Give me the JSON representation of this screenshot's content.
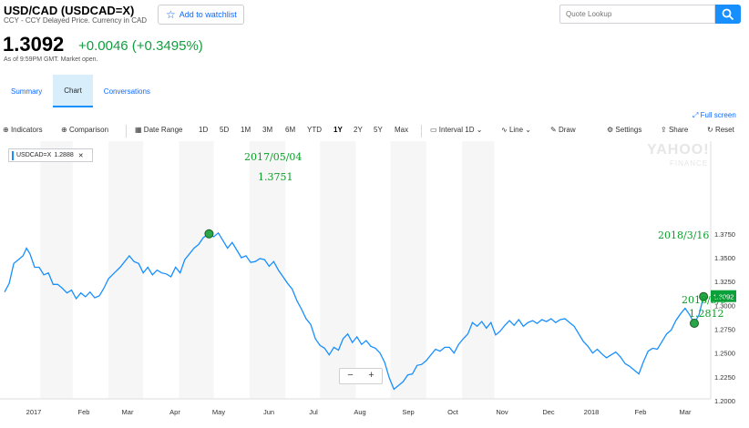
{
  "header": {
    "ticker": "USD/CAD (USDCAD=X)",
    "subline": "CCY - CCY Delayed Price. Currency in CAD",
    "watchlist_label": "Add to watchlist",
    "search_placeholder": "Quote Lookup"
  },
  "quote": {
    "price": "1.3092",
    "change": "+0.0046 (+0.3495%)",
    "as_of": "As of 9:59PM GMT. Market open."
  },
  "tabs": [
    {
      "label": "Summary"
    },
    {
      "label": "Chart",
      "active": true
    },
    {
      "label": "Conversations"
    }
  ],
  "fullscreen_label": "Full screen",
  "toolbar": {
    "indicators": "Indicators",
    "comparison": "Comparison",
    "date_range": "Date Range",
    "ranges": [
      "1D",
      "5D",
      "1M",
      "3M",
      "6M",
      "YTD",
      "1Y",
      "2Y",
      "5Y",
      "Max"
    ],
    "selected_range": "1Y",
    "interval": "Interval",
    "interval_value": "1D",
    "line": "Line",
    "draw": "Draw",
    "settings": "Settings",
    "share": "Share",
    "reset": "Reset"
  },
  "legend": {
    "label": "USDCAD=X",
    "value": "1.2888"
  },
  "watermark": {
    "line1": "YAHOO!",
    "line2": "FINANCE"
  },
  "zoom": {
    "minus": "−",
    "plus": "+"
  },
  "colors": {
    "line": "#188fff",
    "accent": "#0f69ff",
    "positive": "#109e3e",
    "annotation": "#0a9e29",
    "marker": "#2aa54a",
    "band": "#f6f6f6"
  },
  "chart_data": {
    "type": "line",
    "x_ticks": [
      "2017",
      "Feb",
      "Mar",
      "Apr",
      "May",
      "Jun",
      "Jul",
      "Aug",
      "Sep",
      "Oct",
      "Nov",
      "Dec",
      "2018",
      "Feb",
      "Mar"
    ],
    "y_ticks": [
      "1.3750",
      "1.3500",
      "1.3250",
      "1.3000",
      "1.2750",
      "1.2500",
      "1.2250",
      "1.2000"
    ],
    "ylim": [
      1.195,
      1.385
    ],
    "series": [
      {
        "values": [
          [
            0,
            1.314
          ],
          [
            4,
            1.323
          ],
          [
            8,
            1.344
          ],
          [
            12,
            1.348
          ],
          [
            16,
            1.352
          ],
          [
            19,
            1.36
          ],
          [
            22,
            1.354
          ],
          [
            26,
            1.34
          ],
          [
            30,
            1.34
          ],
          [
            34,
            1.332
          ],
          [
            38,
            1.334
          ],
          [
            42,
            1.322
          ],
          [
            46,
            1.322
          ],
          [
            50,
            1.318
          ],
          [
            54,
            1.313
          ],
          [
            58,
            1.316
          ],
          [
            62,
            1.307
          ],
          [
            66,
            1.313
          ],
          [
            70,
            1.309
          ],
          [
            74,
            1.314
          ],
          [
            78,
            1.308
          ],
          [
            82,
            1.31
          ],
          [
            86,
            1.318
          ],
          [
            90,
            1.328
          ],
          [
            95,
            1.334
          ],
          [
            100,
            1.34
          ],
          [
            104,
            1.346
          ],
          [
            108,
            1.352
          ],
          [
            112,
            1.346
          ],
          [
            116,
            1.344
          ],
          [
            120,
            1.334
          ],
          [
            124,
            1.34
          ],
          [
            128,
            1.332
          ],
          [
            132,
            1.337
          ],
          [
            136,
            1.334
          ],
          [
            140,
            1.333
          ],
          [
            144,
            1.33
          ],
          [
            148,
            1.34
          ],
          [
            152,
            1.334
          ],
          [
            156,
            1.348
          ],
          [
            160,
            1.354
          ],
          [
            164,
            1.36
          ],
          [
            168,
            1.364
          ],
          [
            172,
            1.371
          ],
          [
            177,
            1.3751
          ],
          [
            181,
            1.372
          ],
          [
            185,
            1.376
          ],
          [
            189,
            1.368
          ],
          [
            193,
            1.36
          ],
          [
            197,
            1.366
          ],
          [
            201,
            1.358
          ],
          [
            205,
            1.35
          ],
          [
            209,
            1.352
          ],
          [
            213,
            1.345
          ],
          [
            217,
            1.346
          ],
          [
            221,
            1.349
          ],
          [
            225,
            1.348
          ],
          [
            229,
            1.341
          ],
          [
            233,
            1.346
          ],
          [
            237,
            1.337
          ],
          [
            241,
            1.33
          ],
          [
            245,
            1.323
          ],
          [
            249,
            1.317
          ],
          [
            253,
            1.305
          ],
          [
            257,
            1.296
          ],
          [
            261,
            1.286
          ],
          [
            265,
            1.28
          ],
          [
            269,
            1.265
          ],
          [
            273,
            1.258
          ],
          [
            277,
            1.255
          ],
          [
            281,
            1.248
          ],
          [
            285,
            1.256
          ],
          [
            289,
            1.253
          ],
          [
            293,
            1.265
          ],
          [
            297,
            1.27
          ],
          [
            301,
            1.261
          ],
          [
            305,
            1.267
          ],
          [
            309,
            1.259
          ],
          [
            313,
            1.263
          ],
          [
            317,
            1.257
          ],
          [
            321,
            1.255
          ],
          [
            325,
            1.25
          ],
          [
            329,
            1.24
          ],
          [
            333,
            1.224
          ],
          [
            337,
            1.212
          ],
          [
            341,
            1.216
          ],
          [
            345,
            1.22
          ],
          [
            349,
            1.227
          ],
          [
            353,
            1.228
          ],
          [
            357,
            1.237
          ],
          [
            361,
            1.238
          ],
          [
            365,
            1.242
          ],
          [
            369,
            1.248
          ],
          [
            373,
            1.254
          ],
          [
            377,
            1.252
          ],
          [
            381,
            1.256
          ],
          [
            385,
            1.256
          ],
          [
            389,
            1.25
          ],
          [
            393,
            1.259
          ],
          [
            397,
            1.265
          ],
          [
            401,
            1.27
          ],
          [
            405,
            1.282
          ],
          [
            409,
            1.278
          ],
          [
            413,
            1.283
          ],
          [
            417,
            1.276
          ],
          [
            421,
            1.282
          ],
          [
            425,
            1.269
          ],
          [
            429,
            1.273
          ],
          [
            433,
            1.279
          ],
          [
            437,
            1.284
          ],
          [
            441,
            1.279
          ],
          [
            445,
            1.285
          ],
          [
            449,
            1.278
          ],
          [
            453,
            1.282
          ],
          [
            457,
            1.284
          ],
          [
            461,
            1.281
          ],
          [
            465,
            1.285
          ],
          [
            469,
            1.283
          ],
          [
            473,
            1.286
          ],
          [
            477,
            1.282
          ],
          [
            481,
            1.285
          ],
          [
            485,
            1.286
          ],
          [
            489,
            1.282
          ],
          [
            493,
            1.278
          ],
          [
            497,
            1.27
          ],
          [
            501,
            1.262
          ],
          [
            505,
            1.257
          ],
          [
            509,
            1.25
          ],
          [
            513,
            1.254
          ],
          [
            517,
            1.249
          ],
          [
            521,
            1.245
          ],
          [
            525,
            1.248
          ],
          [
            529,
            1.251
          ],
          [
            533,
            1.246
          ],
          [
            537,
            1.239
          ],
          [
            541,
            1.236
          ],
          [
            545,
            1.232
          ],
          [
            549,
            1.228
          ],
          [
            553,
            1.241
          ],
          [
            557,
            1.252
          ],
          [
            561,
            1.255
          ],
          [
            565,
            1.254
          ],
          [
            569,
            1.262
          ],
          [
            573,
            1.27
          ],
          [
            577,
            1.274
          ],
          [
            581,
            1.284
          ],
          [
            585,
            1.291
          ],
          [
            589,
            1.297
          ],
          [
            593,
            1.29
          ],
          [
            597,
            1.2812
          ],
          [
            601,
            1.29
          ],
          [
            605,
            1.3092
          ]
        ]
      }
    ],
    "annotations": [
      {
        "date": "2017/05/04",
        "value": "1.3751"
      },
      {
        "date": "2018/3/9",
        "value": "1.2812"
      },
      {
        "date": "2018/3/16",
        "value": ""
      }
    ],
    "last_value_label": "1.3092"
  }
}
